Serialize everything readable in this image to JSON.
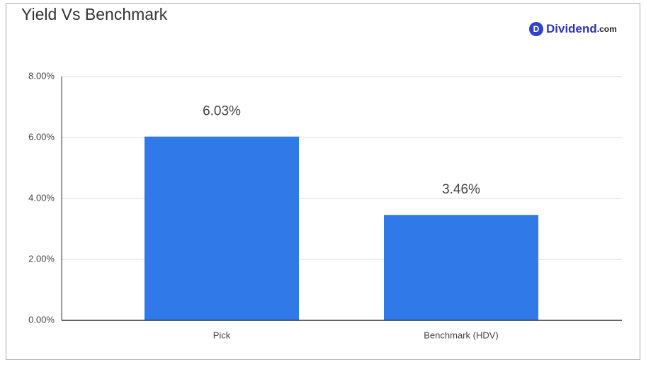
{
  "chart_data": {
    "type": "bar",
    "title": "Yield Vs Benchmark",
    "logo_icon": "D",
    "logo_name": "Dividend",
    "logo_suffix": ".com",
    "categories": [
      "Pick",
      "Benchmark (HDV)"
    ],
    "values": [
      6.03,
      3.46
    ],
    "value_labels": [
      "6.03%",
      "3.46%"
    ],
    "color": "#3079e8",
    "ylim": [
      0,
      8
    ],
    "yticks": [
      {
        "value": 0,
        "label": "0.00%"
      },
      {
        "value": 2,
        "label": "2.00%"
      },
      {
        "value": 4,
        "label": "4.00%"
      },
      {
        "value": 6,
        "label": "6.00%"
      },
      {
        "value": 8,
        "label": "8.00%"
      }
    ],
    "grid": true
  }
}
